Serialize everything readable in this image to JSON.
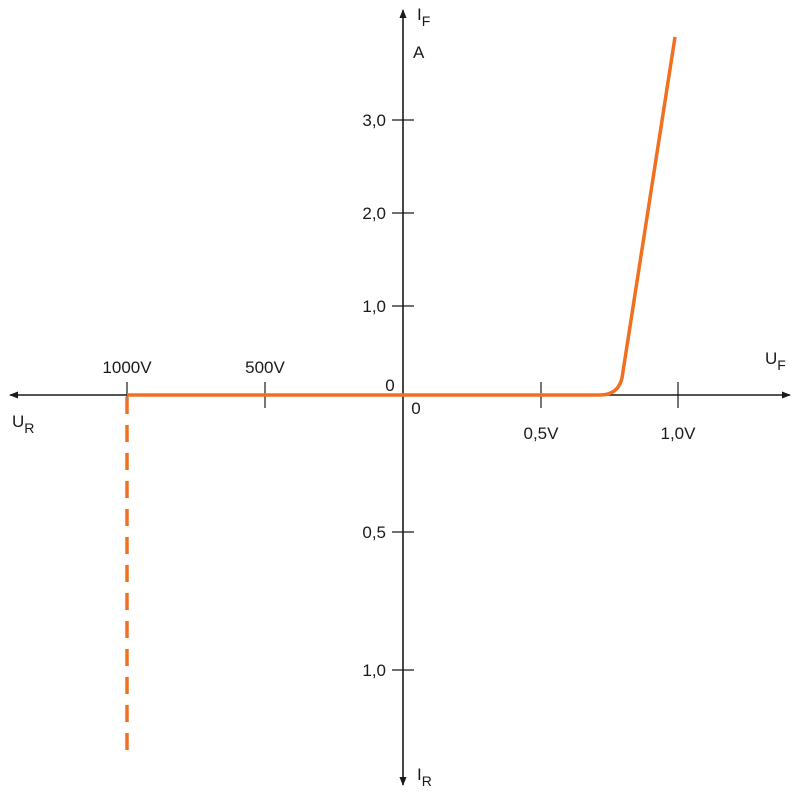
{
  "axes": {
    "forward_current": {
      "symbol": "I",
      "subscript": "F",
      "unit": "A"
    },
    "reverse_current": {
      "symbol": "I",
      "subscript": "R"
    },
    "forward_voltage": {
      "symbol": "U",
      "subscript": "F"
    },
    "reverse_voltage": {
      "symbol": "U",
      "subscript": "R"
    }
  },
  "origin_labels": [
    "0",
    "0"
  ],
  "forward_current_ticks": [
    "3,0",
    "2,0",
    "1,0"
  ],
  "reverse_current_ticks": [
    "0,5",
    "1,0"
  ],
  "reverse_voltage_ticks": [
    "1000V",
    "500V"
  ],
  "forward_voltage_ticks": [
    "0,5V",
    "1,0V"
  ]
}
